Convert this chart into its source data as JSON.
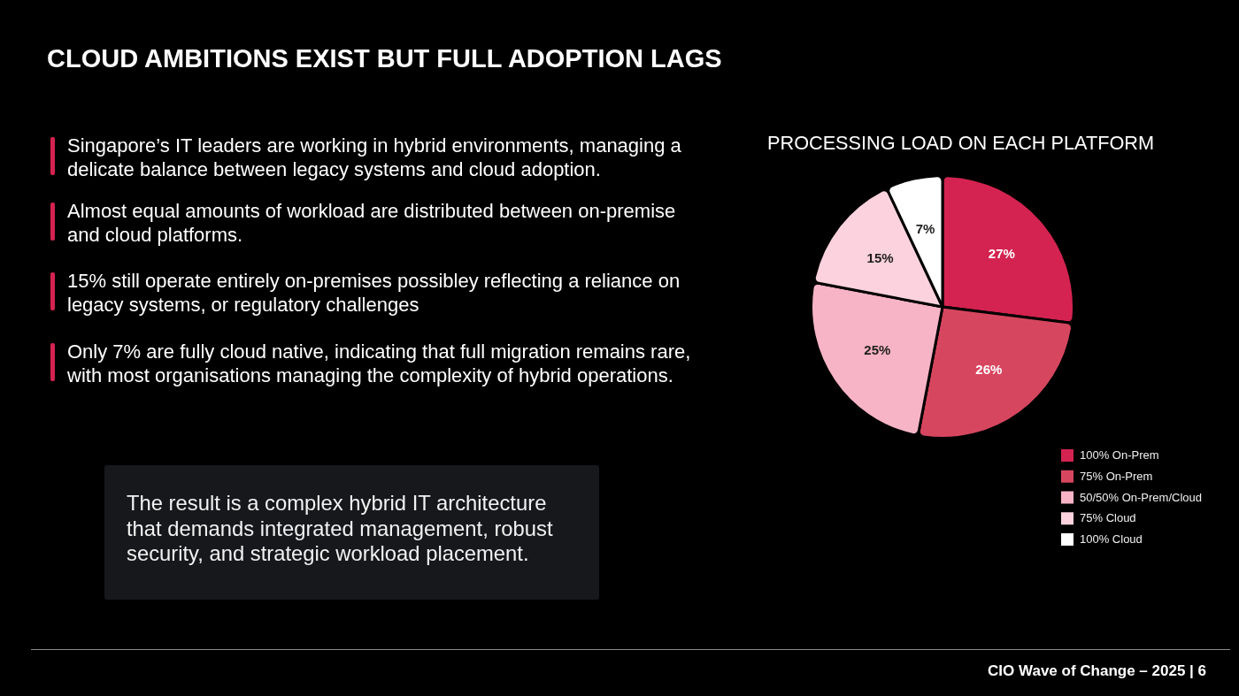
{
  "chart_data": {
    "type": "pie",
    "title": "CLOUD AMBITIONS EXIST BUT FULL ADOPTION LAGS",
    "subtitle": "PROCESSING LOAD ON EACH PLATFORM",
    "categories": [
      "100% On-Prem",
      "75% On-Prem",
      "50/50% On-Prem/Cloud",
      "75% Cloud",
      "100% Cloud"
    ],
    "values": [
      27,
      26,
      25,
      15,
      7
    ],
    "colors": [
      "#d42350",
      "#d7465f",
      "#f7b4c6",
      "#fbd2dd",
      "#ffffff"
    ],
    "value_labels": [
      "27%",
      "26%",
      "25%",
      "15%",
      "7%"
    ],
    "legend": "bottom right",
    "annotations": [
      "Singapore’s IT leaders are working in hybrid environments, managing a delicate balance between legacy systems and cloud adoption.",
      "Almost equal amounts of workload are distributed between on-premise and cloud platforms.",
      "15% still operate entirely on-premises possibley reflecting a reliance on legacy systems, or regulatory challenges",
      "Only 7% are fully cloud native, indicating that full migration remains rare, with most organisations managing the complexity of hybrid operations.",
      "The result is a complex hybrid IT architecture that demands integrated management, robust security, and strategic workload placement.",
      "CIO Wave of Change – 2025 | 6"
    ]
  }
}
